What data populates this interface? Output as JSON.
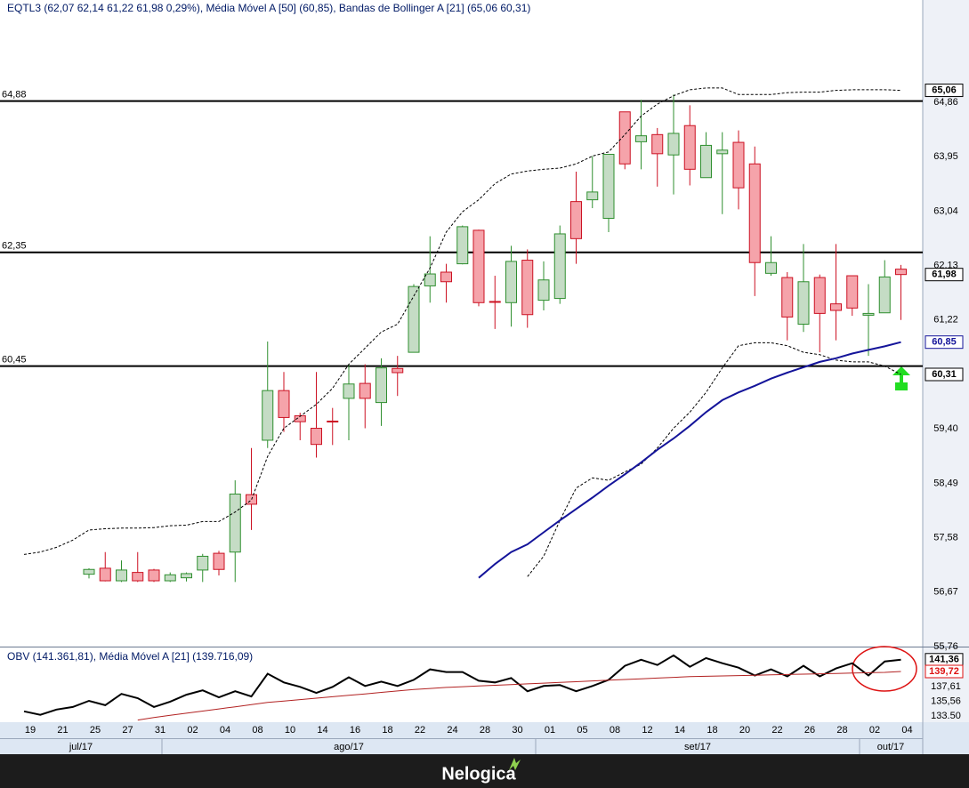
{
  "brand": "Nelogica",
  "chart_data": [
    {
      "type": "candlestick",
      "title": "EQTL3 (62,07  62,14  61,22  61,98  0,29%), Média Móvel A [50] (60,85), Bandas de Bollinger A [21] (65,06  60,31)",
      "categories": [
        "19",
        null,
        "21",
        null,
        "25",
        null,
        "27",
        null,
        "31",
        null,
        "02",
        null,
        "04",
        null,
        "08",
        null,
        "10",
        null,
        "14",
        null,
        "16",
        null,
        "18",
        null,
        "22",
        null,
        "24",
        null,
        "28",
        null,
        "30",
        null,
        "01",
        null,
        "05",
        null,
        "08",
        null,
        "12",
        null,
        "14",
        null,
        "18",
        null,
        "20",
        null,
        "22",
        null,
        "26",
        null,
        "28",
        null,
        "02",
        null,
        "04"
      ],
      "x_groups": [
        "jul/17",
        "ago/17",
        "set/17",
        "out/17"
      ],
      "open": [
        null,
        null,
        null,
        null,
        56.97,
        57.07,
        56.86,
        57.0,
        57.04,
        56.86,
        56.91,
        57.04,
        57.32,
        57.34,
        58.3,
        59.21,
        60.04,
        59.62,
        59.41,
        59.53,
        59.91,
        60.16,
        59.84,
        60.41,
        60.68,
        61.79,
        62.02,
        62.16,
        62.72,
        61.53,
        61.51,
        62.22,
        61.55,
        61.58,
        63.2,
        63.23,
        62.92,
        64.7,
        64.2,
        64.32,
        63.98,
        64.47,
        63.6,
        64.0,
        64.19,
        63.83,
        62.0,
        61.93,
        61.15,
        61.93,
        61.49,
        61.96,
        61.3,
        61.34,
        62.07
      ],
      "high": [
        null,
        null,
        null,
        null,
        57.07,
        57.34,
        57.2,
        57.34,
        57.06,
        57.0,
        57.0,
        57.31,
        57.36,
        58.54,
        59.08,
        60.86,
        60.35,
        59.67,
        60.35,
        59.75,
        60.48,
        60.48,
        60.58,
        60.62,
        61.82,
        62.62,
        62.16,
        62.8,
        62.73,
        61.96,
        62.46,
        62.4,
        62.2,
        62.8,
        63.7,
        63.96,
        63.99,
        64.7,
        64.9,
        64.43,
        64.99,
        64.81,
        64.36,
        64.36,
        64.39,
        64.12,
        62.62,
        62.02,
        62.49,
        61.98,
        62.49,
        61.96,
        61.82,
        62.22,
        62.14
      ],
      "low": [
        null,
        null,
        null,
        null,
        56.9,
        56.85,
        56.84,
        56.84,
        56.84,
        56.84,
        56.85,
        56.84,
        56.95,
        56.84,
        57.71,
        59.08,
        59.35,
        59.21,
        58.92,
        59.13,
        59.21,
        59.41,
        59.45,
        59.95,
        60.68,
        61.51,
        61.51,
        62.15,
        61.45,
        61.07,
        61.11,
        61.09,
        61.38,
        61.49,
        62.16,
        63.09,
        62.69,
        63.74,
        63.74,
        63.45,
        63.32,
        63.47,
        63.6,
        62.99,
        63.07,
        61.62,
        61.96,
        60.88,
        61.02,
        60.68,
        60.88,
        61.29,
        60.62,
        61.34,
        61.22
      ],
      "close": [
        null,
        null,
        null,
        null,
        57.05,
        56.86,
        57.04,
        56.86,
        56.86,
        56.96,
        56.98,
        57.27,
        57.05,
        58.31,
        58.14,
        60.04,
        59.59,
        59.52,
        59.14,
        59.52,
        60.15,
        59.91,
        60.42,
        60.34,
        61.78,
        61.99,
        61.86,
        62.78,
        61.51,
        61.52,
        62.2,
        61.31,
        61.89,
        62.66,
        62.58,
        63.36,
        63.99,
        63.83,
        64.3,
        64.0,
        64.34,
        63.74,
        64.14,
        64.06,
        63.43,
        62.18,
        62.18,
        61.27,
        61.86,
        61.33,
        61.38,
        61.42,
        61.33,
        61.94,
        61.98
      ],
      "up_color": "#c5dcc5",
      "up_edge": "#2f8f2f",
      "down_color": "#f5a3aa",
      "down_edge": "#cc1122",
      "overlays": [
        {
          "color": "#000000",
          "dash": true,
          "values": [
            57.3,
            57.34,
            57.42,
            57.54,
            57.71,
            57.73,
            57.74,
            57.74,
            57.75,
            57.78,
            57.79,
            57.85,
            57.85,
            58.01,
            58.21,
            58.94,
            59.41,
            59.61,
            59.81,
            60.08,
            60.48,
            60.75,
            61.02,
            61.15,
            61.62,
            62.09,
            62.69,
            63.03,
            63.23,
            63.5,
            63.66,
            63.71,
            63.74,
            63.76,
            63.83,
            63.96,
            64.03,
            64.32,
            64.63,
            64.83,
            64.97,
            65.07,
            65.1,
            65.1,
            64.99,
            64.99,
            64.99,
            65.02,
            65.03,
            65.03,
            65.06,
            65.07,
            65.07,
            65.07,
            65.06
          ]
        },
        {
          "color": "#000000",
          "dash": true,
          "values": [
            null,
            null,
            null,
            null,
            null,
            null,
            null,
            null,
            null,
            null,
            null,
            null,
            null,
            null,
            null,
            null,
            null,
            null,
            null,
            null,
            null,
            null,
            null,
            null,
            null,
            null,
            null,
            null,
            null,
            null,
            null,
            56.93,
            57.27,
            57.87,
            58.41,
            58.58,
            58.54,
            58.68,
            58.81,
            59.08,
            59.41,
            59.68,
            60.01,
            60.42,
            60.79,
            60.84,
            60.84,
            60.79,
            60.68,
            60.64,
            60.55,
            60.52,
            60.52,
            60.45,
            60.31
          ]
        },
        {
          "color": "#14149a",
          "dash": false,
          "values": [
            null,
            null,
            null,
            null,
            null,
            null,
            null,
            null,
            null,
            null,
            null,
            null,
            null,
            null,
            null,
            null,
            null,
            null,
            null,
            null,
            null,
            null,
            null,
            null,
            null,
            null,
            null,
            null,
            56.91,
            57.14,
            57.34,
            57.47,
            57.67,
            57.87,
            58.06,
            58.25,
            58.45,
            58.64,
            58.84,
            59.05,
            59.24,
            59.45,
            59.68,
            59.88,
            60.01,
            60.12,
            60.24,
            60.34,
            60.43,
            60.52,
            60.58,
            60.66,
            60.72,
            60.78,
            60.85
          ]
        }
      ],
      "hlines": [
        {
          "value": 64.88,
          "label": "64,88"
        },
        {
          "value": 62.35,
          "label": "62,35"
        },
        {
          "value": 60.45,
          "label": "60,45"
        }
      ],
      "last_labels": [
        {
          "value": 65.06,
          "label": "65,06",
          "color": "#000000"
        },
        {
          "value": 61.98,
          "label": "61,98",
          "color": "#000000"
        },
        {
          "value": 60.85,
          "label": "60,85",
          "color": "#14149a"
        },
        {
          "value": 60.31,
          "label": "60,31",
          "color": "#000000"
        }
      ],
      "ylim": [
        55.76,
        66.57
      ],
      "yticks": [
        {
          "value": 64.86,
          "label": "64,86"
        },
        {
          "value": 63.95,
          "label": "63,95"
        },
        {
          "value": 63.04,
          "label": "63,04"
        },
        {
          "value": 62.13,
          "label": "62,13"
        },
        {
          "value": 61.22,
          "label": "61,22"
        },
        {
          "value": 59.4,
          "label": "59,40"
        },
        {
          "value": 58.49,
          "label": "58,49"
        },
        {
          "value": 57.58,
          "label": "57,58"
        },
        {
          "value": 56.67,
          "label": "56,67"
        },
        {
          "value": 55.76,
          "label": "55,76"
        }
      ]
    },
    {
      "type": "line",
      "title": "OBV (141.361,81), Média Móvel A [21] (139.716,09)",
      "series": [
        {
          "color": "#000000",
          "values": [
            134.16,
            133.68,
            134.41,
            134.77,
            135.63,
            135.02,
            136.6,
            136.0,
            134.77,
            135.51,
            136.48,
            137.09,
            136.12,
            136.97,
            136.24,
            139.41,
            138.19,
            137.58,
            136.73,
            137.58,
            138.92,
            137.7,
            138.31,
            137.7,
            138.56,
            140.02,
            139.65,
            139.65,
            138.43,
            138.19,
            138.8,
            136.97,
            137.7,
            137.82,
            136.97,
            137.7,
            138.56,
            140.51,
            141.36,
            140.63,
            141.97,
            140.38,
            141.6,
            140.87,
            140.26,
            139.16,
            140.02,
            139.04,
            140.51,
            139.04,
            140.14,
            140.87,
            139.16,
            141.12,
            141.36
          ]
        },
        {
          "color": "#b22222",
          "values": [
            null,
            null,
            null,
            null,
            null,
            null,
            null,
            132.95,
            133.3,
            133.6,
            133.9,
            134.2,
            134.5,
            134.8,
            135.1,
            135.4,
            135.6,
            135.8,
            136.0,
            136.2,
            136.4,
            136.6,
            136.8,
            137.0,
            137.2,
            137.35,
            137.5,
            137.6,
            137.7,
            137.8,
            137.9,
            138.0,
            138.1,
            138.2,
            138.3,
            138.4,
            138.5,
            138.6,
            138.7,
            138.8,
            138.9,
            139.0,
            139.05,
            139.1,
            139.15,
            139.2,
            139.25,
            139.3,
            139.35,
            139.4,
            139.45,
            139.5,
            139.55,
            139.6,
            139.72
          ]
        }
      ],
      "last_labels": [
        {
          "value": 141.36,
          "label": "141,36",
          "color": "#000000"
        },
        {
          "value": 139.72,
          "label": "139,72",
          "color": "#dd1111"
        }
      ],
      "ylim": [
        132.65,
        143.07
      ],
      "yticks": [
        {
          "value": 137.61,
          "label": "137,61"
        },
        {
          "value": 135.56,
          "label": "135,56"
        },
        {
          "value": 133.5,
          "label": "133.50"
        }
      ]
    }
  ]
}
